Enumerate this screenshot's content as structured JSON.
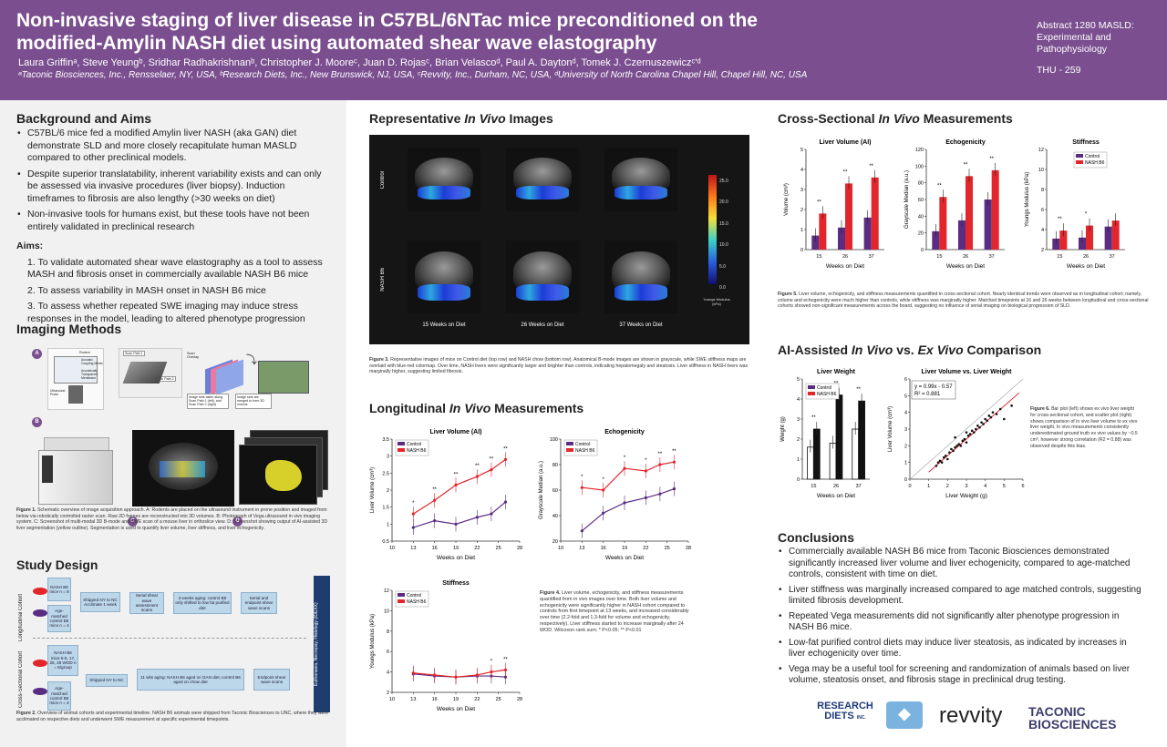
{
  "header": {
    "title": "Non-invasive staging of liver disease in C57BL/6NTac mice preconditioned on the modified-Amylin NASH diet using automated shear wave elastography",
    "authors": "Laura Griffinᵃ, Steve Yeungᵇ, Sridhar Radhakrishnanᵇ, Christopher J. Mooreᶜ, Juan D. Rojasᶜ, Brian Velascoᵈ, Paul A. Daytonᵈ, Tomek J. Czernuszewiczᶜ'ᵈ",
    "affiliations": "ᵃTaconic Biosciences, Inc., Rensselaer, NY, USA, ᵇResearch Diets, Inc., New Brunswick, NJ, USA, ᶜRevvity, Inc., Durham, NC, USA, ᵈUniversity of North Carolina Chapel Hill, Chapel Hill, NC, USA",
    "abstract": "Abstract 1280 MASLD: Experimental and Pathophysiology",
    "poster_id": "THU - 259"
  },
  "background": {
    "heading": "Background and Aims",
    "bullets": [
      "C57BL/6 mice fed a modified Amylin liver NASH (aka GAN) diet demonstrate SLD and more closely recapitulate human MASLD compared to other preclinical models.",
      "Despite superior translatability, inherent variability exists and can only be assessed via invasive procedures (liver biopsy). Induction timeframes to fibrosis are also lengthy (>30 weeks on diet)",
      "Non-invasive tools for humans exist, but these tools have not been entirely validated in preclinical research"
    ],
    "aims_heading": "Aims:",
    "aims": [
      "1. To validate automated shear wave elastography as a tool to assess MASH and fibrosis onset in commercially available NASH B6 mice",
      "2. To assess variability in MASH onset in NASH B6 mice",
      "3. To assess whether repeated SWE imaging may induce stress responses in the model, leading to altered phenotype progression"
    ]
  },
  "imaging": {
    "heading": "Imaging Methods",
    "panels": [
      "A",
      "B",
      "C",
      "D"
    ],
    "panel_a_labels": [
      "Rodent",
      "Acoustic Coupling Media",
      "Acoustically Transparent Membrane",
      "Ultrasound Probe",
      "Scan Path 1",
      "Scan Overlay",
      "Scan Path 2",
      "Image sets taken along Scan Path 1 (left), and Scan Path 2 (right)",
      "Image sets are merged to form 3D volume"
    ],
    "caption_prefix": "Figure 1.",
    "caption": "Schematic overview of image acquisition approach. A: Rodents are placed on the ultrasound instrument in prone position and imaged from below via robotically controlled raster scan. Raw 2D frames are reconstructed into 3D volumes. B: Photograph of Vega ultrasound in vivo imaging system. C: Screenshot of multi-modal 3D B-mode and SWE scan of a mouse liver in orthoslice view. D: Screenshot showing output of AI-assisted 3D liver segmentation (yellow outline). Segmentation is used to quantify liver volume, liver stiffness, and liver echogenicity."
  },
  "study": {
    "heading": "Study Design",
    "long_label": "Longitudinal Cohort",
    "cross_label": "Cross-Sectional Cohort",
    "long_boxes": [
      "NASH B6 mice n = 8",
      "Age-matched control B6 mice n = 4",
      "Shipped NY to NC Acclimate 1 week",
      "Serial shear wave assessment scans",
      "3 weeks aging: control B6 only shifted to low fat purified diet",
      "Serial and endpoint shear wave scans"
    ],
    "cross_boxes": [
      "NASH B6 mice 5-6, 17, 25, 28 WOD n = 8/group",
      "Age-matched control B6 mice n = 4",
      "Shipped NY to NC",
      "11 wks aging: NASH B6 aged on GAN diet; control B6 aged on chow diet",
      "Endpoint shear wave scans"
    ],
    "side_label": "Euthanasia, Necropsy, Histology (IDEXX)",
    "caption_prefix": "Figure 2.",
    "caption": "Overview of animal cohorts and experimental timeline. NASH B6 animals were shipped from Taconic Biosciences to UNC, where they were acclimated on respective diets and underwent SWE measurement at specific experimental timepoints."
  },
  "rep": {
    "heading_a": "Representative ",
    "heading_i": "In Vivo",
    "heading_b": " Images",
    "row_labels": [
      "Control",
      "NASH B6"
    ],
    "col_labels": [
      "15 Weeks on Diet",
      "26 Weeks on Diet",
      "37 Weeks on Diet"
    ],
    "colorbar_ticks": [
      "25.0",
      "20.0",
      "15.0",
      "10.0",
      "5.0",
      "0.0"
    ],
    "colorbar_label": "Youngs Modulus (kPa)",
    "caption_prefix": "Figure 3.",
    "caption": "Representative images of mice on Control diet (top row) and NASH chow (bottom row). Anatomical B-mode images are shown in grayscale, while SWE stiffness maps are overlaid with blue-red colormap. Over time, NASH livers were significantly larger and brighter than controls, indicating hepatomegaly and steatosis. Liver stiffness in NASH livers was marginally higher, suggesting limited fibrosis."
  },
  "long": {
    "heading_a": "Longitudinal ",
    "heading_i": "In Vivo",
    "heading_b": " Measurements",
    "caption_prefix": "Figure 4.",
    "caption": "Liver volume, echogenicity, and stiffness measurements quantified from in vivo images over time. Both liver volume and echogenicity were significantly higher in NASH cohort compared to controls from first timepoint at 13 weeks, and increased considerably over time (2.2-fold and 1.3-fold for volume and echogenicity, respectively). Liver stiffness started to increase marginally after 24 WOD. Wilcoxon rank sum; * P<0.05; ** P<0.01"
  },
  "cross": {
    "heading_a": "Cross-Sectional ",
    "heading_i": "In Vivo",
    "heading_b": " Measurements",
    "caption_prefix": "Figure 5.",
    "caption": "Liver volume, echogenicity, and stiffness measurements quantified in cross-sectional cohort. Nearly identical trends were observed as in longitudinal cohort; namely, volume and echogenicity were much higher than controls, while stiffness was marginally higher. Matched timepoints at 16 and 26 weeks between longitudinal and cross-sectional cohorts showed non-significant measurements across the board, suggesting no influence of serial imaging on biological progression of SLD."
  },
  "ai": {
    "heading_a": "AI-Assisted ",
    "heading_i1": "In Vivo",
    "heading_mid": " vs. ",
    "heading_i2": "Ex Vivo",
    "heading_b": " Comparison",
    "caption_prefix": "Figure 6.",
    "caption": "Bar plot (left) shows ex vivo liver weight for cross-sectional cohort, and scatter plot (right) shows comparison of in vivo liver volume to ex vivo liver weight. In vivo measurements consistently underestimated ground truth ex vivo values by ~0.5 cm³, however strong correlation (R2 = 0.88) was observed despite this bias."
  },
  "conclusions": {
    "heading": "Conclusions",
    "bullets": [
      "Commercially available NASH B6 mice from Taconic Biosciences demonstrated significantly increased liver volume and liver echogenicity, compared to age-matched controls, consistent with time on diet.",
      "Liver stiffness was marginally increased compared to age matched controls, suggesting limited fibrosis development.",
      "Repeated Vega measurements did not significantly alter phenotype progression in NASH B6 mice.",
      "Low-fat purified control diets may induce liver steatosis, as indicated by increases in liver echogenicity over time.",
      "Vega may be a useful tool for screening and randomization of animals based on liver volume, steatosis onset, and fibrosis stage in preclinical drug testing."
    ]
  },
  "logos": {
    "research_diets": "RESEARCH DIETS",
    "research_diets_sub": "INC.",
    "revvity": "revvity",
    "taconic": "TACONIC BIOSCIENCES"
  },
  "colors": {
    "header": "#7b4f8f",
    "control": "#5a2d82",
    "nash": "#e3262b"
  },
  "chart_data": [
    {
      "id": "long_volume",
      "type": "line",
      "title": "Liver Volume (AI)",
      "xlabel": "Weeks on Diet",
      "ylabel": "Liver Volume (cm³)",
      "x": [
        13,
        16,
        19,
        22,
        24,
        26
      ],
      "xlim": [
        10,
        28
      ],
      "xticks": [
        10,
        13,
        16,
        19,
        22,
        25,
        28
      ],
      "ylim": [
        0.5,
        3.5
      ],
      "yticks": [
        0.5,
        1,
        1.5,
        2,
        2.5,
        3,
        3.5
      ],
      "series": [
        {
          "name": "Control",
          "values": [
            0.9,
            1.1,
            1.0,
            1.2,
            1.3,
            1.65
          ]
        },
        {
          "name": "NASH B6",
          "values": [
            1.3,
            1.7,
            2.15,
            2.4,
            2.6,
            2.9
          ]
        }
      ],
      "sig": [
        "*",
        "**",
        "**",
        "**",
        "**",
        "**"
      ]
    },
    {
      "id": "long_echo",
      "type": "line",
      "title": "Echogenicity",
      "xlabel": "Weeks on Diet",
      "ylabel": "Grayscale Median (a.u.)",
      "x": [
        13,
        16,
        19,
        22,
        24,
        26
      ],
      "xlim": [
        10,
        28
      ],
      "xticks": [
        10,
        13,
        16,
        19,
        22,
        25,
        28
      ],
      "ylim": [
        20,
        100
      ],
      "yticks": [
        20,
        40,
        60,
        80,
        100
      ],
      "series": [
        {
          "name": "Control",
          "values": [
            28,
            42,
            50,
            54,
            57,
            61
          ]
        },
        {
          "name": "NASH B6",
          "values": [
            62,
            60,
            77,
            75,
            80,
            82
          ]
        }
      ],
      "sig": [
        "*",
        "*",
        "*",
        "*",
        "**",
        "**"
      ]
    },
    {
      "id": "long_stiff",
      "type": "line",
      "title": "Stiffness",
      "xlabel": "Weeks on Diet",
      "ylabel": "Youngs Modulus (kPa)",
      "x": [
        13,
        16,
        19,
        22,
        24,
        26
      ],
      "xlim": [
        10,
        28
      ],
      "xticks": [
        10,
        13,
        16,
        19,
        22,
        25,
        28
      ],
      "ylim": [
        2,
        12
      ],
      "yticks": [
        2,
        4,
        6,
        8,
        10,
        12
      ],
      "series": [
        {
          "name": "Control",
          "values": [
            3.8,
            3.6,
            3.5,
            3.6,
            3.6,
            3.5
          ]
        },
        {
          "name": "NASH B6",
          "values": [
            3.9,
            3.7,
            3.5,
            3.7,
            4.0,
            4.2
          ]
        }
      ],
      "sig": [
        "",
        "",
        "",
        "",
        "*",
        "**"
      ]
    },
    {
      "id": "cross_volume",
      "type": "bar",
      "title": "Liver Volume (AI)",
      "xlabel": "Weeks on Diet",
      "ylabel": "Volume (cm³)",
      "categories": [
        "15",
        "26",
        "37"
      ],
      "ylim": [
        0,
        5
      ],
      "yticks": [
        0,
        1,
        2,
        3,
        4,
        5
      ],
      "series": [
        {
          "name": "Control",
          "values": [
            0.7,
            1.1,
            1.6
          ]
        },
        {
          "name": "NASH B6",
          "values": [
            1.8,
            3.3,
            3.6
          ]
        }
      ],
      "sig": [
        "**",
        "**",
        "**"
      ]
    },
    {
      "id": "cross_echo",
      "type": "bar",
      "title": "Echogenicity",
      "xlabel": "Weeks on Diet",
      "ylabel": "Grayscale Median (a.u.)",
      "categories": [
        "15",
        "26",
        "37"
      ],
      "ylim": [
        0,
        120
      ],
      "yticks": [
        0,
        20,
        40,
        60,
        80,
        100,
        120
      ],
      "series": [
        {
          "name": "Control",
          "values": [
            22,
            35,
            60
          ]
        },
        {
          "name": "NASH B6",
          "values": [
            63,
            88,
            95
          ]
        }
      ],
      "sig": [
        "**",
        "**",
        "**"
      ]
    },
    {
      "id": "cross_stiff",
      "type": "bar",
      "title": "Stiffness",
      "xlabel": "Weeks on Diet",
      "ylabel": "Youngs Modulus (kPa)",
      "categories": [
        "15",
        "26",
        "37"
      ],
      "ylim": [
        2,
        12
      ],
      "yticks": [
        2,
        4,
        6,
        8,
        10,
        12
      ],
      "series": [
        {
          "name": "Control",
          "values": [
            3.1,
            3.2,
            4.3
          ]
        },
        {
          "name": "NASH B6",
          "values": [
            3.9,
            4.4,
            4.9
          ]
        }
      ],
      "sig": [
        "**",
        "*",
        ""
      ]
    },
    {
      "id": "weight",
      "type": "bar",
      "title": "Liver Weight",
      "xlabel": "Weeks on Diet",
      "ylabel": "Weight (g)",
      "categories": [
        "15",
        "26",
        "37"
      ],
      "ylim": [
        0,
        5
      ],
      "yticks": [
        0,
        1,
        2,
        3,
        4,
        5
      ],
      "series": [
        {
          "name": "Control",
          "values": [
            1.6,
            1.8,
            2.5
          ]
        },
        {
          "name": "NASH B6",
          "values": [
            2.5,
            4.2,
            3.9
          ]
        }
      ],
      "sig": [
        "**",
        "**",
        "**"
      ]
    },
    {
      "id": "scatter",
      "type": "scatter",
      "title": "Liver Volume vs. Liver Weight",
      "xlabel": "Liver Weight (g)",
      "ylabel": "Liver Volume (cm³)",
      "xlim": [
        0,
        6
      ],
      "ylim": [
        0,
        6
      ],
      "xticks": [
        0,
        1,
        2,
        3,
        4,
        5,
        6
      ],
      "yticks": [
        0,
        1,
        2,
        3,
        4,
        5,
        6
      ],
      "fit": {
        "slope": 0.99,
        "intercept": -0.57
      },
      "equation": "y = 0.99x - 0.57",
      "r2": "R² = 0.881",
      "points": [
        [
          1.4,
          0.8
        ],
        [
          1.5,
          1.0
        ],
        [
          1.6,
          1.1
        ],
        [
          1.7,
          1.0
        ],
        [
          1.8,
          1.3
        ],
        [
          1.9,
          1.4
        ],
        [
          2.0,
          1.2
        ],
        [
          2.1,
          1.6
        ],
        [
          2.2,
          1.8
        ],
        [
          2.3,
          1.7
        ],
        [
          2.4,
          1.9
        ],
        [
          2.5,
          2.0
        ],
        [
          2.6,
          2.1
        ],
        [
          2.7,
          2.0
        ],
        [
          2.8,
          2.3
        ],
        [
          2.9,
          2.4
        ],
        [
          3.0,
          2.2
        ],
        [
          3.1,
          2.6
        ],
        [
          3.2,
          2.7
        ],
        [
          3.3,
          2.9
        ],
        [
          3.4,
          2.8
        ],
        [
          3.5,
          3.0
        ],
        [
          3.6,
          3.2
        ],
        [
          3.7,
          3.1
        ],
        [
          3.8,
          3.4
        ],
        [
          3.9,
          3.3
        ],
        [
          4.0,
          3.6
        ],
        [
          4.1,
          3.5
        ],
        [
          4.2,
          3.8
        ],
        [
          4.3,
          3.7
        ],
        [
          4.4,
          4.0
        ],
        [
          4.6,
          3.9
        ],
        [
          4.8,
          4.2
        ],
        [
          5.4,
          4.4
        ],
        [
          5.0,
          3.6
        ],
        [
          3.0,
          2.8
        ],
        [
          2.4,
          2.5
        ]
      ]
    }
  ],
  "legend": [
    "Control",
    "NASH B6"
  ]
}
